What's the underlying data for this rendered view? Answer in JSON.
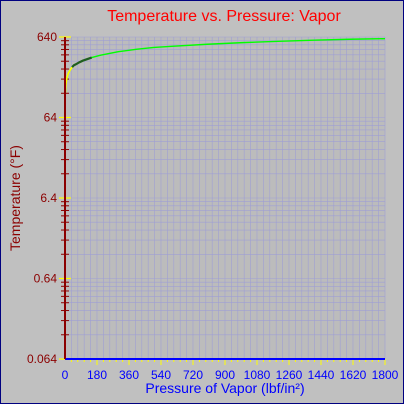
{
  "colors": {
    "background": "#c0c0c0",
    "frame_border": "#000080",
    "plot_area": "#bcbcbc",
    "grid": "#9f9fd4",
    "title": "#ff0000",
    "x_axis": "#0000ff",
    "y_axis": "#8b0000",
    "tick_yellow": "#ffff00",
    "curve_green": "#00ff00",
    "curve_yellow": "#ffff00",
    "curve_dark": "#1f5f1f"
  },
  "chart_data": {
    "type": "line",
    "title": "Temperature vs. Pressure: Vapor",
    "xlabel": "Pressure of Vapor (lbf/in²)",
    "ylabel": "Temperature (°F)",
    "x_ticks": [
      "0",
      "180",
      "360",
      "540",
      "720",
      "900",
      "1080",
      "1260",
      "1440",
      "1620",
      "1800"
    ],
    "y_ticks": [
      "0.064",
      "0.64",
      "6.4",
      "64",
      "640"
    ],
    "xlim": [
      0,
      1800
    ],
    "ylim": [
      0.064,
      640
    ],
    "y_scale": "log",
    "grid": true,
    "series": [
      {
        "color": "#00ff00",
        "x": [
          2,
          5,
          10,
          15,
          20,
          30,
          40,
          50,
          60,
          80,
          100,
          150,
          200,
          300,
          400,
          500,
          600,
          800,
          1000,
          1200,
          1400,
          1600,
          1800
        ],
        "y": [
          130,
          165,
          195,
          215,
          230,
          250,
          270,
          285,
          292,
          310,
          325,
          355,
          380,
          420,
          450,
          475,
          490,
          520,
          545,
          565,
          585,
          600,
          610
        ]
      }
    ]
  }
}
